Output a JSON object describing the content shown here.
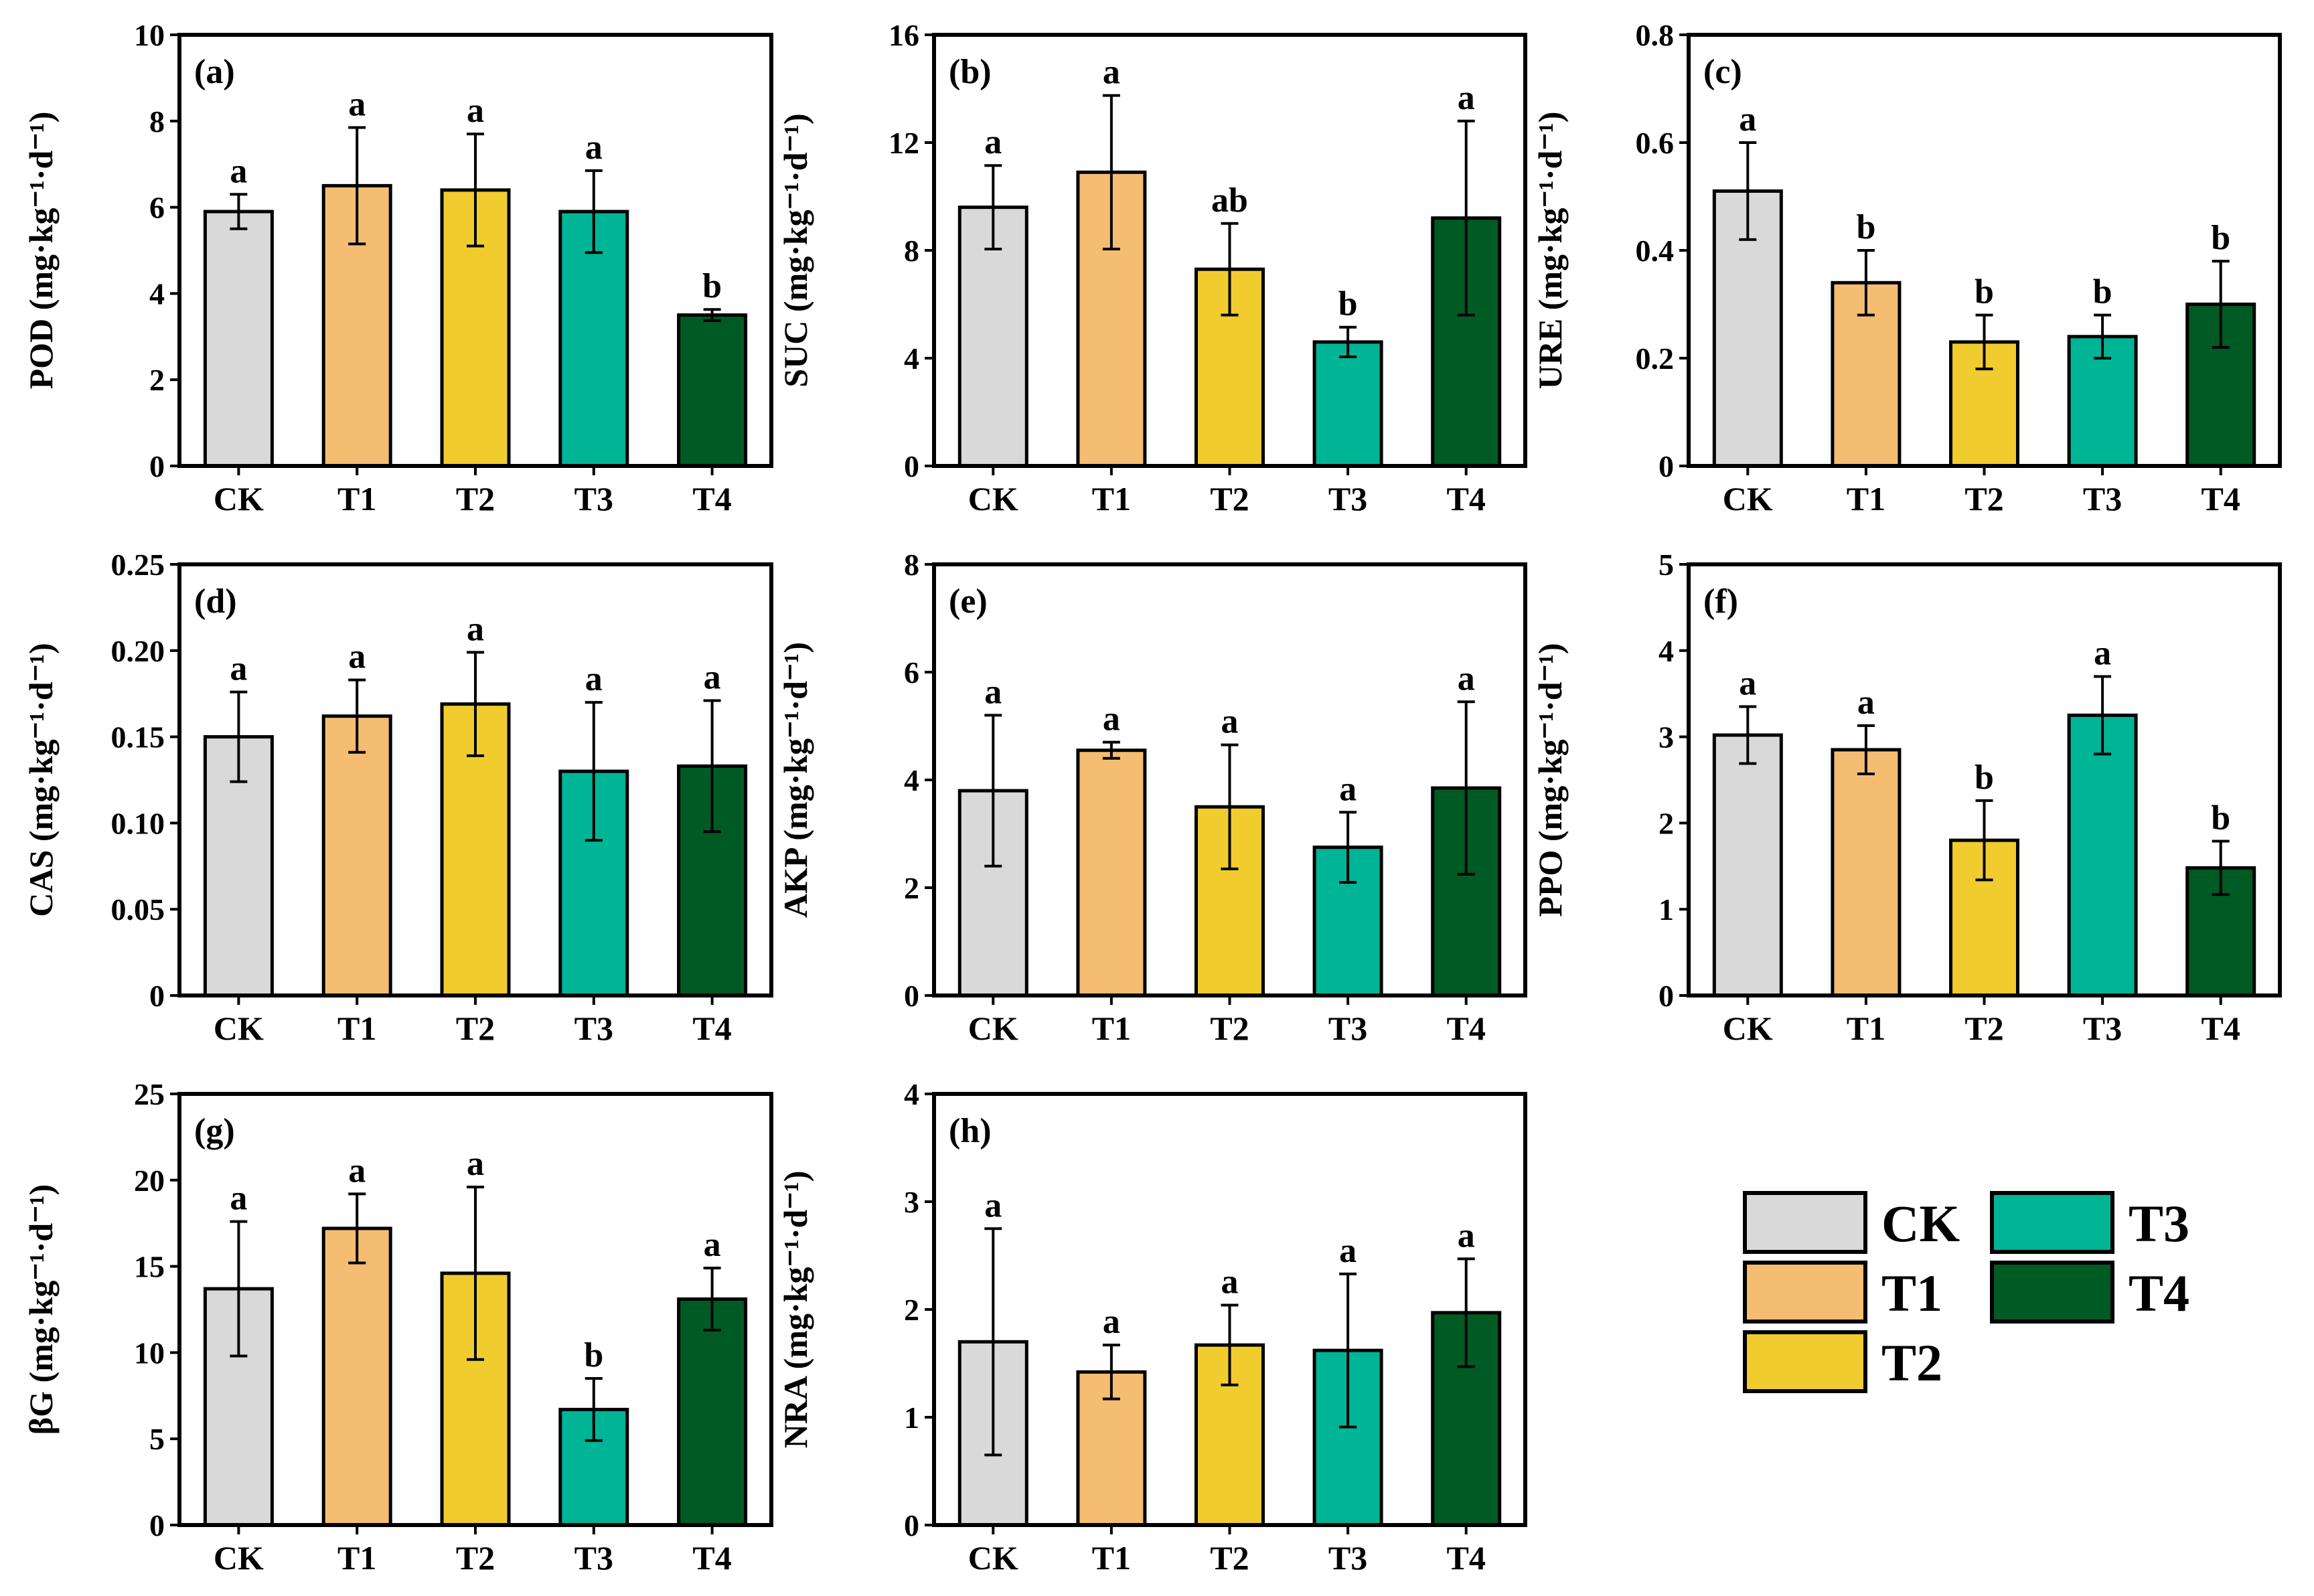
{
  "colors": {
    "CK": "#d9d9d9",
    "T1": "#f4bd71",
    "T2": "#f0cc2e",
    "T3": "#00b496",
    "T4": "#005a23"
  },
  "legend": [
    "CK",
    "T1",
    "T2",
    "T3",
    "T4"
  ],
  "unit": "(mg·kg⁻¹·d⁻¹)",
  "chart_data": [
    {
      "type": "bar",
      "panel": "(a)",
      "ylabel": "POD",
      "ylim": [
        0,
        10
      ],
      "yticks": [
        "0",
        "2",
        "4",
        "6",
        "8",
        "10"
      ],
      "categories": [
        "CK",
        "T1",
        "T2",
        "T3",
        "T4"
      ],
      "values": [
        5.9,
        6.5,
        6.4,
        5.9,
        3.5
      ],
      "errors": [
        0.4,
        1.35,
        1.3,
        0.95,
        0.13
      ],
      "letters": [
        "a",
        "a",
        "a",
        "a",
        "b"
      ]
    },
    {
      "type": "bar",
      "panel": "(b)",
      "ylabel": "SUC",
      "ylim": [
        0,
        16
      ],
      "yticks": [
        "0",
        "4",
        "8",
        "12",
        "16"
      ],
      "categories": [
        "CK",
        "T1",
        "T2",
        "T3",
        "T4"
      ],
      "values": [
        9.6,
        10.9,
        7.3,
        4.6,
        9.2
      ],
      "errors": [
        1.55,
        2.85,
        1.7,
        0.55,
        3.6
      ],
      "letters": [
        "a",
        "a",
        "ab",
        "b",
        "a"
      ]
    },
    {
      "type": "bar",
      "panel": "(c)",
      "ylabel": "URE",
      "ylim": [
        0,
        0.8
      ],
      "yticks": [
        "0",
        "0.2",
        "0.4",
        "0.6",
        "0.8"
      ],
      "categories": [
        "CK",
        "T1",
        "T2",
        "T3",
        "T4"
      ],
      "values": [
        0.51,
        0.34,
        0.23,
        0.24,
        0.3
      ],
      "errors": [
        0.09,
        0.06,
        0.05,
        0.04,
        0.08
      ],
      "letters": [
        "a",
        "b",
        "b",
        "b",
        "b"
      ]
    },
    {
      "type": "bar",
      "panel": "(d)",
      "ylabel": "CAS",
      "ylim": [
        0,
        0.25
      ],
      "yticks": [
        "0",
        "0.05",
        "0.10",
        "0.15",
        "0.20",
        "0.25"
      ],
      "categories": [
        "CK",
        "T1",
        "T2",
        "T3",
        "T4"
      ],
      "values": [
        0.15,
        0.162,
        0.169,
        0.13,
        0.133
      ],
      "errors": [
        0.026,
        0.021,
        0.03,
        0.04,
        0.038
      ],
      "letters": [
        "a",
        "a",
        "a",
        "a",
        "a"
      ]
    },
    {
      "type": "bar",
      "panel": "(e)",
      "ylabel": "AKP",
      "ylim": [
        0,
        8
      ],
      "yticks": [
        "0",
        "2",
        "4",
        "6",
        "8"
      ],
      "categories": [
        "CK",
        "T1",
        "T2",
        "T3",
        "T4"
      ],
      "values": [
        3.8,
        4.55,
        3.5,
        2.75,
        3.85
      ],
      "errors": [
        1.4,
        0.15,
        1.15,
        0.65,
        1.6
      ],
      "letters": [
        "a",
        "a",
        "a",
        "a",
        "a"
      ]
    },
    {
      "type": "bar",
      "panel": "(f)",
      "ylabel": "PPO",
      "ylim": [
        0,
        5
      ],
      "yticks": [
        "0",
        "1",
        "2",
        "3",
        "4",
        "5"
      ],
      "categories": [
        "CK",
        "T1",
        "T2",
        "T3",
        "T4"
      ],
      "values": [
        3.02,
        2.85,
        1.8,
        3.25,
        1.48
      ],
      "errors": [
        0.33,
        0.28,
        0.46,
        0.45,
        0.31
      ],
      "letters": [
        "a",
        "a",
        "b",
        "a",
        "b"
      ]
    },
    {
      "type": "bar",
      "panel": "(g)",
      "ylabel": "βG",
      "ylim": [
        0,
        25
      ],
      "yticks": [
        "0",
        "5",
        "10",
        "15",
        "20",
        "25"
      ],
      "categories": [
        "CK",
        "T1",
        "T2",
        "T3",
        "T4"
      ],
      "values": [
        13.7,
        17.2,
        14.6,
        6.7,
        13.1
      ],
      "errors": [
        3.9,
        2.0,
        5.0,
        1.8,
        1.8
      ],
      "letters": [
        "a",
        "a",
        "a",
        "b",
        "a"
      ]
    },
    {
      "type": "bar",
      "panel": "(h)",
      "ylabel": "NRA",
      "ylim": [
        0,
        4
      ],
      "yticks": [
        "0",
        "1",
        "2",
        "3",
        "4"
      ],
      "categories": [
        "CK",
        "T1",
        "T2",
        "T3",
        "T4"
      ],
      "values": [
        1.7,
        1.42,
        1.67,
        1.62,
        1.97
      ],
      "errors": [
        1.05,
        0.25,
        0.37,
        0.71,
        0.5
      ],
      "letters": [
        "a",
        "a",
        "a",
        "a",
        "a"
      ]
    }
  ]
}
